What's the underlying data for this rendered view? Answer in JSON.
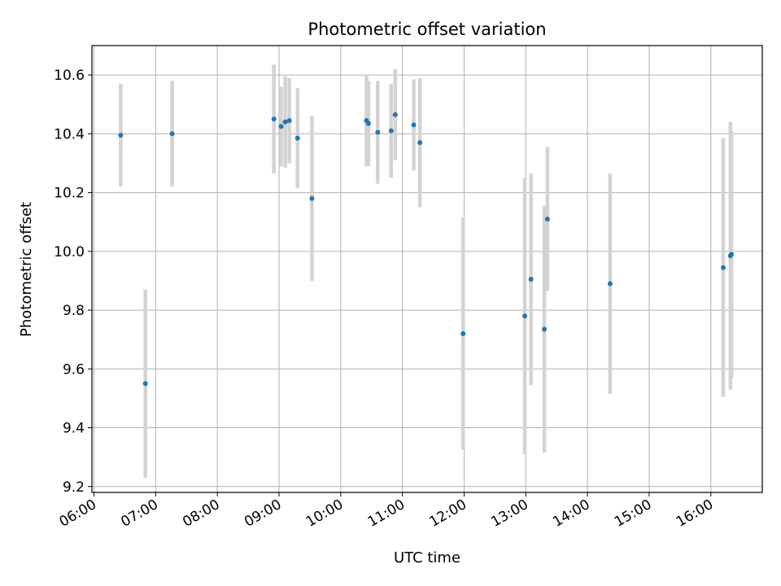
{
  "chart_data": {
    "type": "scatter",
    "title": "Photometric offset variation",
    "xlabel": "UTC time",
    "ylabel": "Photometric offset",
    "x_is_time": true,
    "xlim": [
      "05:58",
      "16:50"
    ],
    "ylim": [
      9.18,
      10.7
    ],
    "x_ticks": [
      "06:00",
      "07:00",
      "08:00",
      "09:00",
      "10:00",
      "11:00",
      "12:00",
      "13:00",
      "14:00",
      "15:00",
      "16:00"
    ],
    "y_ticks": [
      9.2,
      9.4,
      9.6,
      9.8,
      10.0,
      10.2,
      10.4,
      10.6
    ],
    "y_tick_labels": [
      "9.2",
      "9.4",
      "9.6",
      "9.8",
      "10.0",
      "10.2",
      "10.4",
      "10.6"
    ],
    "grid": true,
    "colors": {
      "point": "#1f77b4",
      "errorbar": "#d3d3d3",
      "grid": "#b0b0b0"
    },
    "series": [
      {
        "points": [
          {
            "x": "06:26",
            "y": 10.395,
            "err": 0.175
          },
          {
            "x": "06:50",
            "y": 9.55,
            "err": 0.32
          },
          {
            "x": "07:16",
            "y": 10.4,
            "err": 0.18
          },
          {
            "x": "08:55",
            "y": 10.45,
            "err": 0.185
          },
          {
            "x": "09:02",
            "y": 10.425,
            "err": 0.135
          },
          {
            "x": "09:06",
            "y": 10.44,
            "err": 0.155
          },
          {
            "x": "09:10",
            "y": 10.445,
            "err": 0.145
          },
          {
            "x": "09:18",
            "y": 10.385,
            "err": 0.17
          },
          {
            "x": "09:32",
            "y": 10.18,
            "err": 0.28
          },
          {
            "x": "10:25",
            "y": 10.445,
            "err": 0.155
          },
          {
            "x": "10:27",
            "y": 10.435,
            "err": 0.145
          },
          {
            "x": "10:36",
            "y": 10.405,
            "err": 0.175
          },
          {
            "x": "10:49",
            "y": 10.41,
            "err": 0.16
          },
          {
            "x": "10:53",
            "y": 10.465,
            "err": 0.155
          },
          {
            "x": "11:11",
            "y": 10.43,
            "err": 0.155
          },
          {
            "x": "11:17",
            "y": 10.37,
            "err": 0.22
          },
          {
            "x": "11:59",
            "y": 9.72,
            "err": 0.395
          },
          {
            "x": "12:59",
            "y": 9.78,
            "err": 0.47
          },
          {
            "x": "13:05",
            "y": 9.905,
            "err": 0.36
          },
          {
            "x": "13:18",
            "y": 9.735,
            "err": 0.42
          },
          {
            "x": "13:21",
            "y": 10.11,
            "err": 0.245
          },
          {
            "x": "14:22",
            "y": 9.89,
            "err": 0.375
          },
          {
            "x": "16:12",
            "y": 9.945,
            "err": 0.44
          },
          {
            "x": "16:19",
            "y": 9.985,
            "err": 0.455
          },
          {
            "x": "16:20",
            "y": 9.99,
            "err": 0.42
          }
        ]
      }
    ]
  }
}
